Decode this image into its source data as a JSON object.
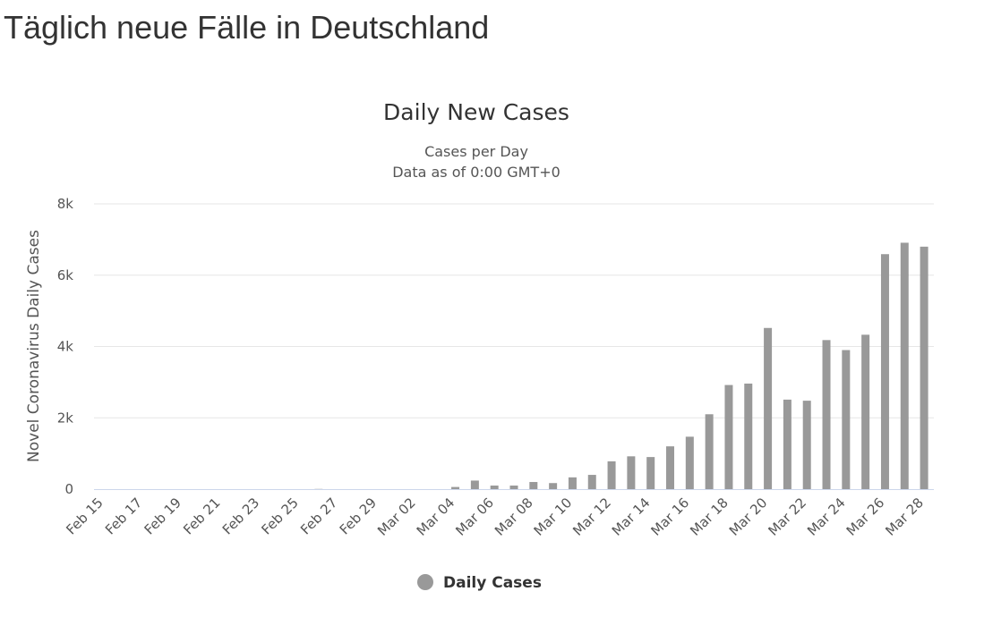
{
  "page": {
    "heading": "Täglich neue Fälle in Deutschland"
  },
  "chart_data": {
    "type": "bar",
    "title": "Daily New Cases",
    "subtitle": [
      "Cases per Day",
      "Data as of 0:00 GMT+0"
    ],
    "ylabel": "Novel Coronavirus Daily Cases",
    "xlabel": "",
    "ylim": [
      0,
      8000
    ],
    "yticks": [
      0,
      2000,
      4000,
      6000,
      8000
    ],
    "ytick_labels": [
      "0",
      "2k",
      "4k",
      "6k",
      "8k"
    ],
    "grid": true,
    "legend_position": "bottom-center",
    "bar_color": "#999999",
    "categories": [
      "Feb 15",
      "Feb 16",
      "Feb 17",
      "Feb 18",
      "Feb 19",
      "Feb 20",
      "Feb 21",
      "Feb 22",
      "Feb 23",
      "Feb 24",
      "Feb 25",
      "Feb 26",
      "Feb 27",
      "Feb 28",
      "Feb 29",
      "Mar 01",
      "Mar 02",
      "Mar 03",
      "Mar 04",
      "Mar 05",
      "Mar 06",
      "Mar 07",
      "Mar 08",
      "Mar 09",
      "Mar 10",
      "Mar 11",
      "Mar 12",
      "Mar 13",
      "Mar 14",
      "Mar 15",
      "Mar 16",
      "Mar 17",
      "Mar 18",
      "Mar 19",
      "Mar 20",
      "Mar 21",
      "Mar 22",
      "Mar 23",
      "Mar 24",
      "Mar 25",
      "Mar 26",
      "Mar 27",
      "Mar 28"
    ],
    "xtick_labels": [
      "Feb 15",
      "Feb 17",
      "Feb 19",
      "Feb 21",
      "Feb 23",
      "Feb 25",
      "Feb 27",
      "Feb 29",
      "Mar 02",
      "Mar 04",
      "Mar 06",
      "Mar 08",
      "Mar 10",
      "Mar 12",
      "Mar 14",
      "Mar 16",
      "Mar 18",
      "Mar 20",
      "Mar 22",
      "Mar 24",
      "Mar 26",
      "Mar 28"
    ],
    "series": [
      {
        "name": "Daily Cases",
        "color": "#999999",
        "values": [
          0,
          0,
          0,
          0,
          0,
          0,
          0,
          0,
          0,
          0,
          0,
          5,
          0,
          0,
          0,
          0,
          0,
          0,
          60,
          240,
          100,
          100,
          200,
          170,
          330,
          400,
          780,
          920,
          900,
          1200,
          1470,
          2100,
          2920,
          2960,
          4520,
          2510,
          2480,
          4180,
          3900,
          4330,
          6590,
          6910,
          6800
        ]
      }
    ]
  }
}
